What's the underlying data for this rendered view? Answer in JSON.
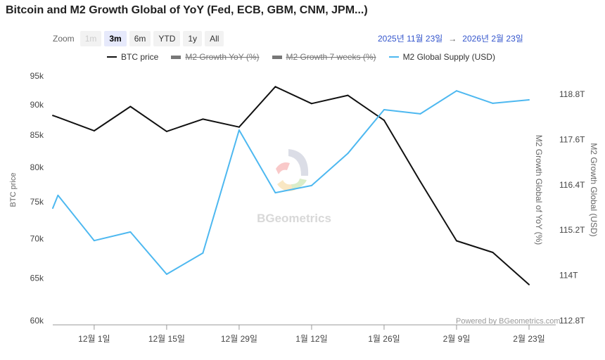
{
  "title": "Bitcoin and M2 Growth Global of YoY (Fed, ECB, GBM, CNM, JPM...)",
  "zoom": {
    "label": "Zoom",
    "buttons": [
      {
        "label": "1m",
        "state": "disabled"
      },
      {
        "label": "3m",
        "state": "selected"
      },
      {
        "label": "6m",
        "state": "normal"
      },
      {
        "label": "YTD",
        "state": "normal"
      },
      {
        "label": "1y",
        "state": "normal"
      },
      {
        "label": "All",
        "state": "normal"
      }
    ]
  },
  "range": {
    "from": "2025년 11월 23일",
    "arrow": "→",
    "to": "2026년 2월 23일"
  },
  "legend": [
    {
      "label": "BTC price",
      "color": "#111111",
      "enabled": true
    },
    {
      "label": "M2 Growth YoY (%)",
      "color": "#777777",
      "enabled": false
    },
    {
      "label": "M2 Growth 7 weeks (%)",
      "color": "#777777",
      "enabled": false
    },
    {
      "label": "M2 Global Supply (USD)",
      "color": "#4db8f0",
      "enabled": true
    }
  ],
  "watermark": "BGeometrics",
  "credit": "Powered by BGeometrics.com",
  "chart_data": {
    "type": "line",
    "title": "Bitcoin and M2 Growth Global of YoY (Fed, ECB, GBM, CNM, JPM...)",
    "x_unit": "days since 2025-11-23",
    "xlim": [
      0,
      92
    ],
    "x_ticks": [
      {
        "day": 8,
        "label": "12월 1일"
      },
      {
        "day": 22,
        "label": "12월 15일"
      },
      {
        "day": 36,
        "label": "12월 29일"
      },
      {
        "day": 50,
        "label": "1월 12일"
      },
      {
        "day": 64,
        "label": "1월 26일"
      },
      {
        "day": 78,
        "label": "2월 9일"
      },
      {
        "day": 92,
        "label": "2월 23일"
      }
    ],
    "y_left": {
      "label": "BTC price",
      "scale": "log",
      "range": [
        60000,
        95000
      ],
      "ticks": [
        {
          "v": 95000,
          "label": "95k"
        },
        {
          "v": 90000,
          "label": "90k"
        },
        {
          "v": 85000,
          "label": "85k"
        },
        {
          "v": 80000,
          "label": "80k"
        },
        {
          "v": 75000,
          "label": "75k"
        },
        {
          "v": 70000,
          "label": "70k"
        },
        {
          "v": 65000,
          "label": "65k"
        },
        {
          "v": 60000,
          "label": "60k"
        }
      ]
    },
    "y_mid_label": "M2 Growth Global of YoY (%)",
    "y_right": {
      "label": "M2 Growth Global (USD)",
      "range": [
        112.8,
        119.2
      ],
      "ticks": [
        {
          "v": 118.8,
          "label": "118.8T"
        },
        {
          "v": 117.6,
          "label": "117.6T"
        },
        {
          "v": 116.4,
          "label": "116.4T"
        },
        {
          "v": 115.2,
          "label": "115.2T"
        },
        {
          "v": 114,
          "label": "114T"
        },
        {
          "v": 112.8,
          "label": "112.8T"
        }
      ]
    },
    "series": [
      {
        "name": "BTC price",
        "axis": "left",
        "color": "#111111",
        "points": [
          [
            0,
            88200
          ],
          [
            1,
            87900
          ],
          [
            8,
            85700
          ],
          [
            15,
            89700
          ],
          [
            22,
            85600
          ],
          [
            29,
            87600
          ],
          [
            36,
            86300
          ],
          [
            43,
            93100
          ],
          [
            50,
            90200
          ],
          [
            57,
            91600
          ],
          [
            64,
            87400
          ],
          [
            71,
            77900
          ],
          [
            78,
            69700
          ],
          [
            85,
            68200
          ],
          [
            92,
            64200
          ]
        ]
      },
      {
        "name": "M2 Global Supply (USD)",
        "axis": "right",
        "color": "#4db8f0",
        "points": [
          [
            0,
            115.78
          ],
          [
            1,
            116.12
          ],
          [
            8,
            114.92
          ],
          [
            15,
            115.15
          ],
          [
            22,
            114.03
          ],
          [
            29,
            114.59
          ],
          [
            36,
            117.85
          ],
          [
            43,
            116.19
          ],
          [
            50,
            116.38
          ],
          [
            57,
            117.23
          ],
          [
            64,
            118.39
          ],
          [
            71,
            118.28
          ],
          [
            78,
            118.89
          ],
          [
            85,
            118.56
          ],
          [
            92,
            118.65
          ]
        ]
      }
    ]
  }
}
